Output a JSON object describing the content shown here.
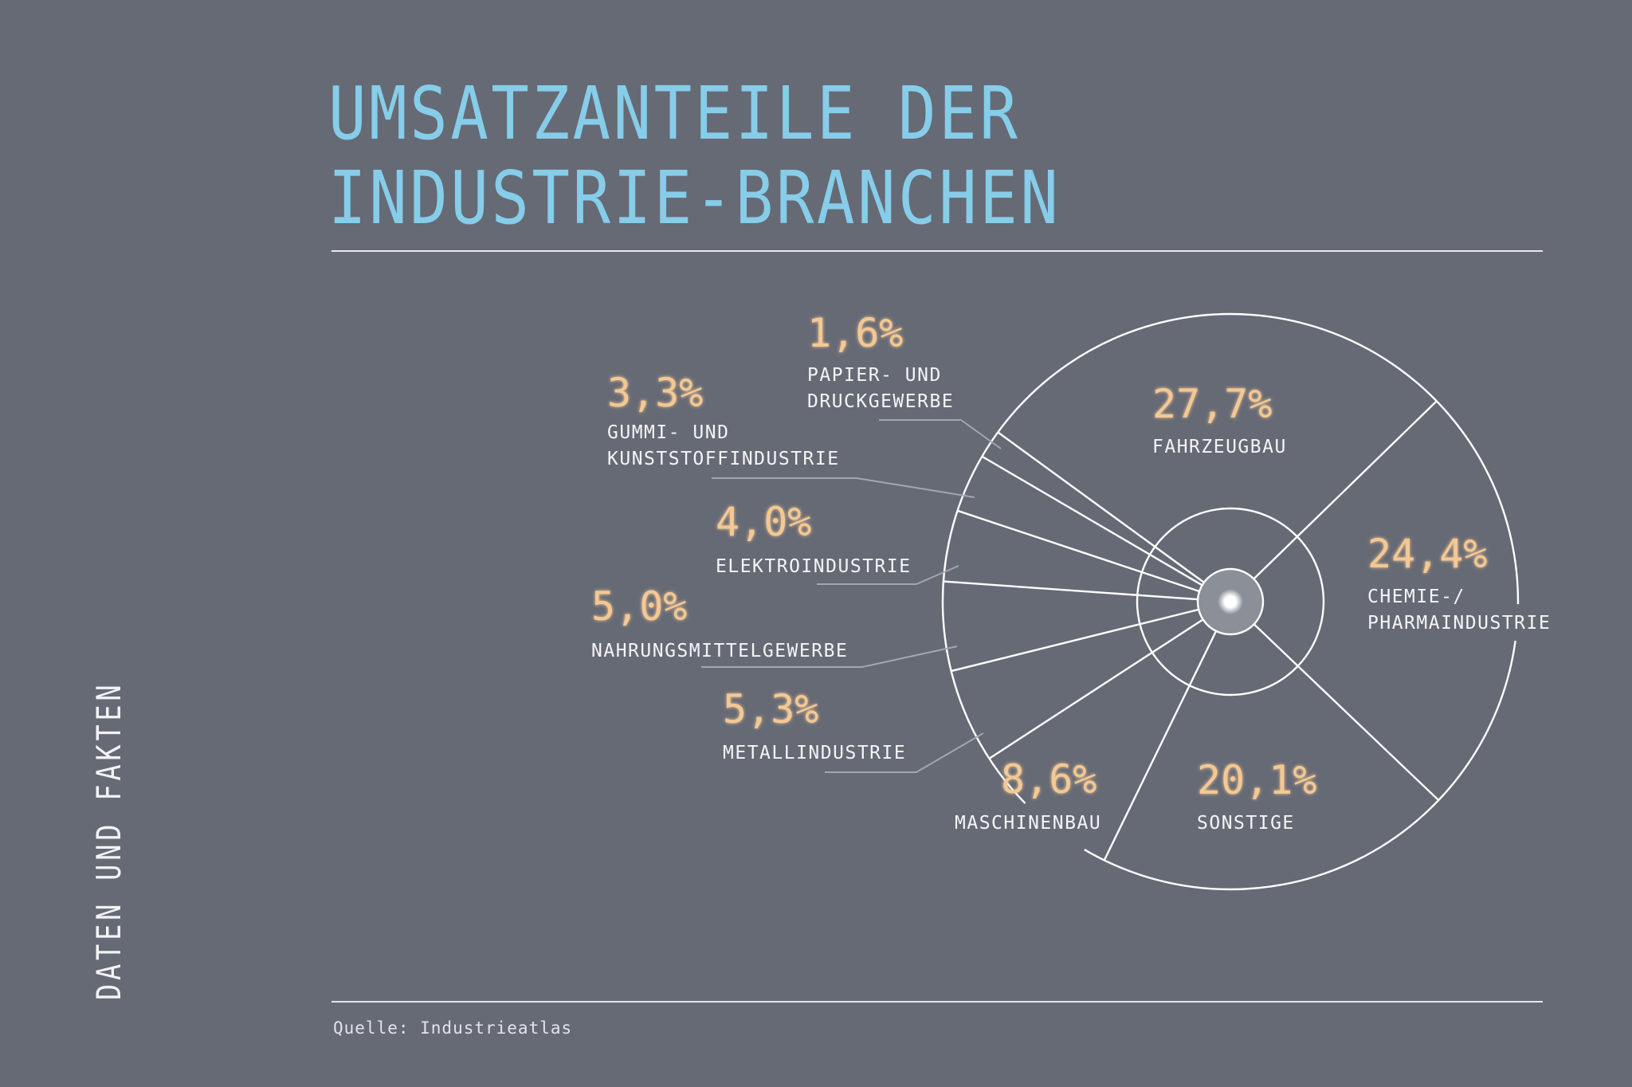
{
  "header": {
    "title_line1": "UMSATZANTEILE DER",
    "title_line2": "INDUSTRIE-BRANCHEN"
  },
  "side_label": "DATEN UND FAKTEN",
  "footer": {
    "source": "Quelle: Industrieatlas"
  },
  "colors": {
    "background": "#666a75",
    "title": "#86cde9",
    "value": "#f3c894",
    "label": "#f4f5f7",
    "line": "#ffffff",
    "leader": "#a2a6ae",
    "hub": "#8b8f98"
  },
  "chart_data": {
    "type": "pie",
    "title": "UMSATZANTEILE DER INDUSTRIE-BRANCHEN",
    "unit": "%",
    "start_angle_deg": -44.2,
    "direction": "clockwise",
    "slices": [
      {
        "name": "CHEMIE-/ PHARMAINDUSTRIE",
        "label_lines": [
          "CHEMIE-/",
          "PHARMAINDUSTRIE"
        ],
        "value": 24.4,
        "value_text": "24,4%"
      },
      {
        "name": "SONSTIGE",
        "label_lines": [
          "SONSTIGE"
        ],
        "value": 20.1,
        "value_text": "20,1%"
      },
      {
        "name": "MASCHINENBAU",
        "label_lines": [
          "MASCHINENBAU"
        ],
        "value": 8.6,
        "value_text": "8,6%"
      },
      {
        "name": "METALLINDUSTRIE",
        "label_lines": [
          "METALLINDUSTRIE"
        ],
        "value": 5.3,
        "value_text": "5,3%"
      },
      {
        "name": "NAHRUNGSMITTELGEWERBE",
        "label_lines": [
          "NAHRUNGSMITTELGEWERBE"
        ],
        "value": 5.0,
        "value_text": "5,0%"
      },
      {
        "name": "ELEKTROINDUSTRIE",
        "label_lines": [
          "ELEKTROINDUSTRIE"
        ],
        "value": 4.0,
        "value_text": "4,0%"
      },
      {
        "name": "GUMMI- UND KUNSTSTOFFINDUSTRIE",
        "label_lines": [
          "GUMMI- UND",
          "KUNSTSTOFFINDUSTRIE"
        ],
        "value": 3.3,
        "value_text": "3,3%"
      },
      {
        "name": "PAPIER- UND DRUCKGEWERBE",
        "label_lines": [
          "PAPIER- UND",
          "DRUCKGEWERBE"
        ],
        "value": 1.6,
        "value_text": "1,6%"
      },
      {
        "name": "FAHRZEUGBAU",
        "label_lines": [
          "FAHRZEUGBAU"
        ],
        "value": 27.7,
        "value_text": "27,7%"
      }
    ]
  }
}
